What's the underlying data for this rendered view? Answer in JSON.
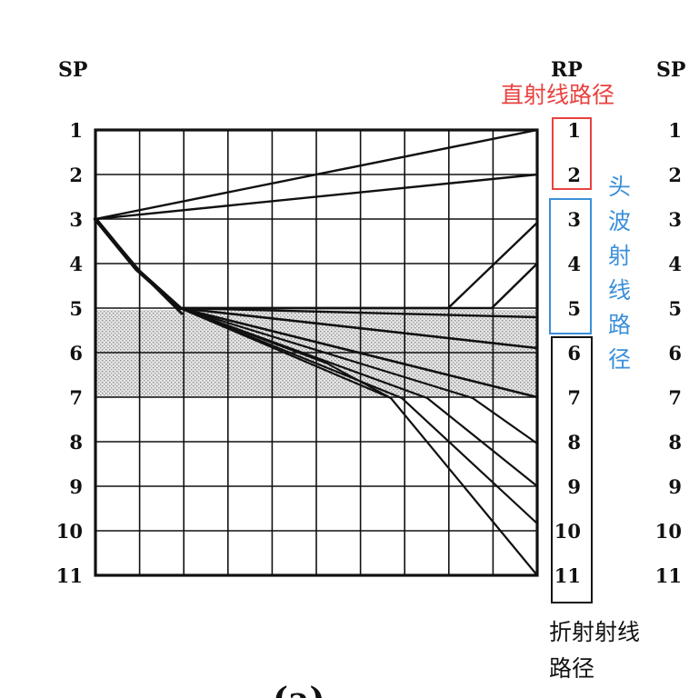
{
  "header": {
    "left_label": "SP",
    "mid_label": "RP",
    "right_label": "SP"
  },
  "row_labels": [
    "1",
    "2",
    "3",
    "4",
    "5",
    "6",
    "7",
    "8",
    "9",
    "10",
    "11"
  ],
  "legend": {
    "direct": {
      "text": "直射线路径",
      "color": "#e8423f"
    },
    "head_wave": {
      "text": "头波射线路径",
      "color": "#3b8fd9"
    },
    "refracted": {
      "line1": "折射射线",
      "line2": "路径",
      "color": "#111111"
    }
  },
  "caption": "(a)",
  "colors": {
    "grid": "#111111",
    "layer": "#cfcfcf",
    "direct_box": "#e8423f",
    "head_box": "#3b8fd9",
    "refr_box": "#111111"
  }
}
